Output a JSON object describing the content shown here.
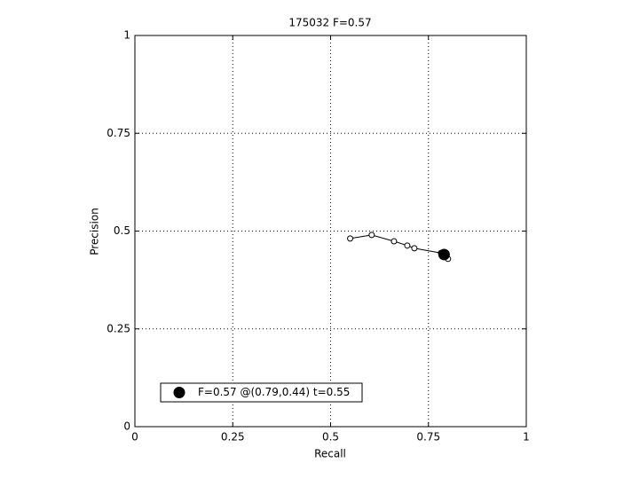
{
  "chart_data": {
    "type": "line",
    "title": "175032 F=0.57",
    "xlabel": "Recall",
    "ylabel": "Precision",
    "xlim": [
      0,
      1
    ],
    "ylim": [
      0,
      1
    ],
    "xticks": [
      0,
      0.25,
      0.5,
      0.75,
      1
    ],
    "yticks": [
      0,
      0.25,
      0.5,
      0.75,
      1
    ],
    "grid": true,
    "legend": "lower left",
    "series": [
      {
        "color": "#000000",
        "marker": "circle",
        "filled": false,
        "x": [
          0.55,
          0.605,
          0.662,
          0.696,
          0.714,
          0.782,
          0.789,
          0.796,
          0.8
        ],
        "values": [
          0.481,
          0.49,
          0.474,
          0.463,
          0.456,
          0.444,
          0.438,
          0.433,
          0.429
        ]
      },
      {
        "name": "F=0.57 @(0.79,0.44) t=0.55",
        "color": "#000000",
        "marker": "circle",
        "filled": true,
        "x": [
          0.79
        ],
        "values": [
          0.44
        ]
      }
    ]
  }
}
